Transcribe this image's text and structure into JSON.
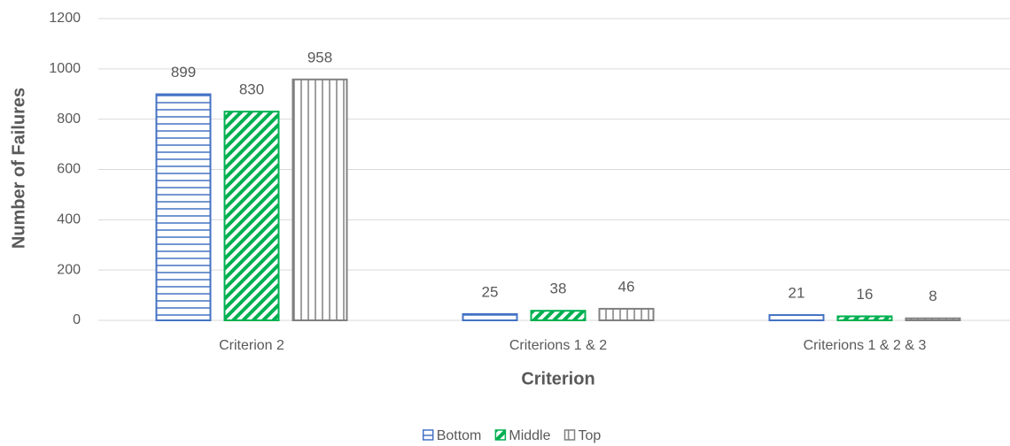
{
  "chart_data": {
    "type": "bar",
    "categories": [
      "Criterion 2",
      "Criterions 1 & 2",
      "Criterions 1 & 2 & 3"
    ],
    "series": [
      {
        "name": "Bottom",
        "color": "#4472c4",
        "hatch": "horizontal",
        "values": [
          899,
          25,
          21
        ]
      },
      {
        "name": "Middle",
        "color": "#00b050",
        "hatch": "diagonal",
        "values": [
          830,
          38,
          16
        ]
      },
      {
        "name": "Top",
        "color": "#808080",
        "hatch": "vertical",
        "values": [
          958,
          46,
          8
        ]
      }
    ],
    "x_label": "Criterion",
    "y_label": "Number of Failures",
    "ylim": [
      0,
      1200
    ],
    "yticks": [
      0,
      200,
      400,
      600,
      800,
      1000,
      1200
    ],
    "grid": true,
    "legend": "bottom"
  }
}
